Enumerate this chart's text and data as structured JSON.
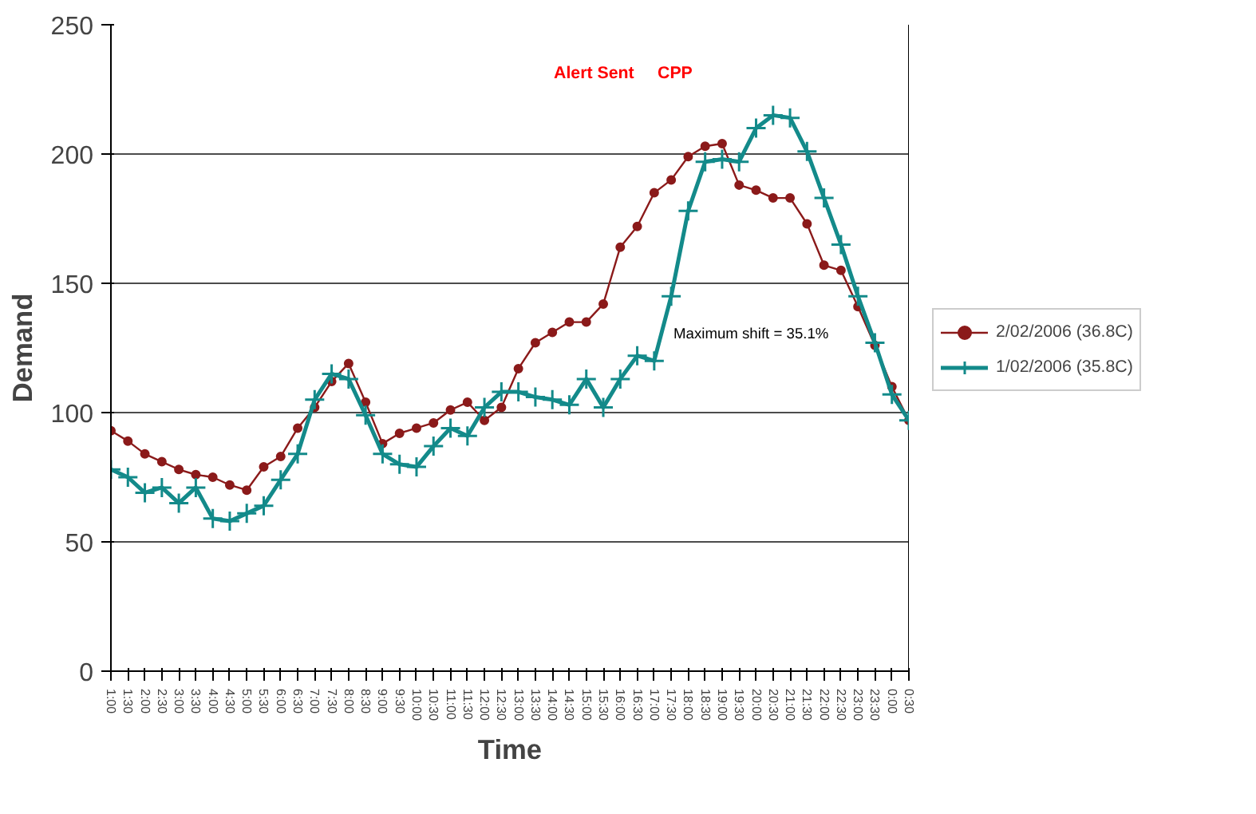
{
  "chart_data": {
    "type": "line",
    "xlabel": "Time",
    "ylabel": "Demand",
    "categories": [
      "1:00",
      "1:30",
      "2:00",
      "2:30",
      "3:00",
      "3:30",
      "4:00",
      "4:30",
      "5:00",
      "5:30",
      "6:00",
      "6:30",
      "7:00",
      "7:30",
      "8:00",
      "8:30",
      "9:00",
      "9:30",
      "10:00",
      "10:30",
      "11:00",
      "11:30",
      "12:00",
      "12:30",
      "13:00",
      "13:30",
      "14:00",
      "14:30",
      "15:00",
      "15:30",
      "16:00",
      "16:30",
      "17:00",
      "17:30",
      "18:00",
      "18:30",
      "19:00",
      "19:30",
      "20:00",
      "20:30",
      "21:00",
      "21:30",
      "22:00",
      "22:30",
      "23:00",
      "23:30",
      "0:00",
      "0:30"
    ],
    "series": [
      {
        "name": "2/02/2006 (36.8C)",
        "color": "#8b1a1a",
        "marker": "circle",
        "values": [
          93,
          89,
          84,
          81,
          78,
          76,
          75,
          72,
          70,
          79,
          83,
          94,
          102,
          112,
          119,
          104,
          88,
          92,
          94,
          96,
          101,
          104,
          97,
          102,
          117,
          127,
          131,
          135,
          135,
          142,
          164,
          172,
          185,
          190,
          199,
          203,
          204,
          188,
          186,
          183,
          183,
          173,
          157,
          155,
          141,
          126,
          110,
          97
        ]
      },
      {
        "name": "1/02/2006 (35.8C)",
        "color": "#138a8a",
        "marker": "cross",
        "values": [
          78,
          75,
          69,
          71,
          65,
          71,
          59,
          58,
          61,
          64,
          74,
          84,
          105,
          115,
          113,
          99,
          84,
          80,
          79,
          87,
          94,
          91,
          102,
          108,
          108,
          106,
          105,
          103,
          113,
          102,
          113,
          122,
          120,
          145,
          178,
          197,
          198,
          197,
          210,
          215,
          214,
          201,
          183,
          165,
          145,
          127,
          107,
          97
        ]
      }
    ],
    "ylim": [
      0,
      250
    ],
    "yticks": [
      0,
      50,
      100,
      150,
      200,
      250
    ],
    "grid": "y",
    "legend": "right",
    "annotations": [
      "Alert Sent",
      "CPP",
      "Maximum shift = 35.1%"
    ]
  }
}
